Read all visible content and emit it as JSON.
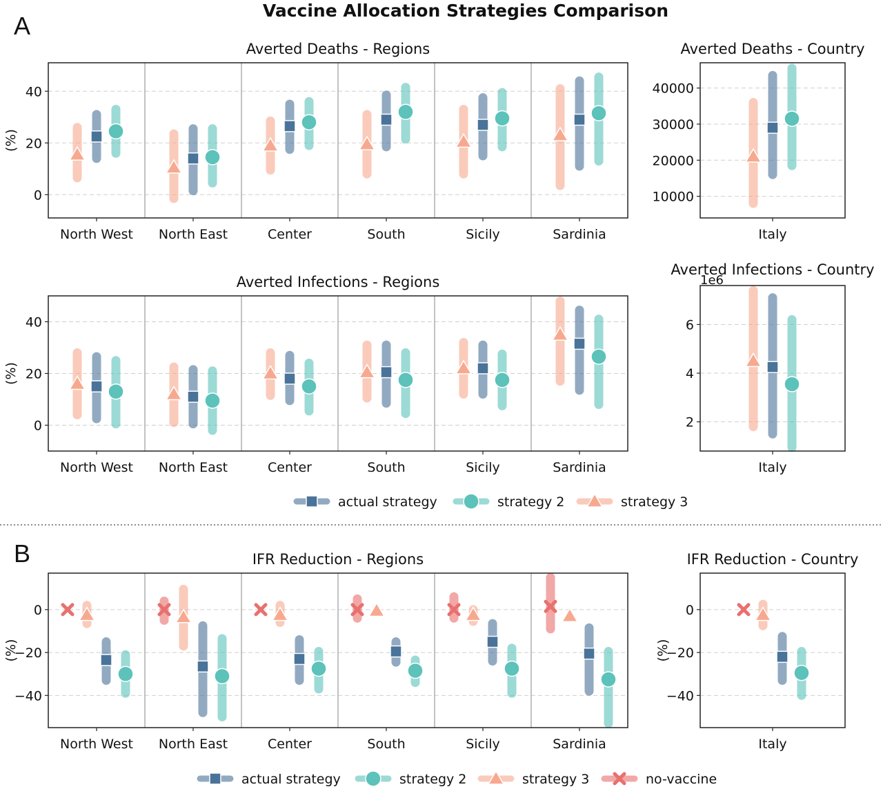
{
  "title": "Vaccine Allocation Strategies Comparison",
  "sections": [
    {
      "letter": "A"
    },
    {
      "letter": "B"
    }
  ],
  "legends": {
    "panel_a": [
      {
        "label": "actual strategy",
        "marker": "square",
        "color": "#4a7399"
      },
      {
        "label": "strategy 2",
        "marker": "circle",
        "color": "#5cc2ba"
      },
      {
        "label": "strategy 3",
        "marker": "triangle",
        "color": "#f7a98f"
      }
    ],
    "panel_b": [
      {
        "label": "actual strategy",
        "marker": "square",
        "color": "#4a7399"
      },
      {
        "label": "strategy 2",
        "marker": "circle",
        "color": "#5cc2ba"
      },
      {
        "label": "strategy 3",
        "marker": "triangle",
        "color": "#f7a98f"
      },
      {
        "label": "no-vaccine",
        "marker": "x",
        "color": "#e8706e"
      }
    ]
  },
  "chart_data": [
    {
      "id": "deaths_regions",
      "type": "scatter",
      "title": "Averted Deaths - Regions",
      "xlabel": "",
      "ylabel": "(%)",
      "ylim": [
        -9,
        51
      ],
      "yticks": [
        0,
        20,
        40
      ],
      "grid": true,
      "categories": [
        "North West",
        "North East",
        "Center",
        "South",
        "Sicily",
        "Sardinia"
      ],
      "series": [
        {
          "name": "strategy 3",
          "values": [
            15.5,
            10.5,
            19.0,
            19.5,
            20.5,
            23.0
          ],
          "low": [
            6.5,
            -1.5,
            9.5,
            8,
            8,
            3.5
          ],
          "high": [
            26,
            23.5,
            28.5,
            31,
            33,
            41
          ]
        },
        {
          "name": "actual strategy",
          "values": [
            22.5,
            14,
            26.5,
            29,
            27,
            29
          ],
          "low": [
            14,
            1.5,
            17.5,
            18.5,
            15,
            11
          ],
          "high": [
            31,
            25.5,
            35,
            38.5,
            37.5,
            44
          ]
        },
        {
          "name": "strategy 2",
          "values": [
            24.5,
            14.5,
            28,
            32,
            29.5,
            31.5
          ],
          "low": [
            16,
            4.5,
            19,
            21.5,
            18.5,
            13
          ],
          "high": [
            33,
            25.5,
            36,
            41.5,
            39.5,
            45.5
          ]
        }
      ]
    },
    {
      "id": "deaths_country",
      "type": "scatter",
      "title": "Averted Deaths - Country",
      "xlabel": "",
      "ylabel": "",
      "ylim": [
        4000,
        47000
      ],
      "yticks": [
        10000,
        20000,
        30000,
        40000
      ],
      "grid": true,
      "categories": [
        "Italy"
      ],
      "series": [
        {
          "name": "strategy 3",
          "values": [
            21000
          ],
          "low": [
            8000
          ],
          "high": [
            36000
          ]
        },
        {
          "name": "actual strategy",
          "values": [
            29000
          ],
          "low": [
            16000
          ],
          "high": [
            43500
          ]
        },
        {
          "name": "strategy 2",
          "values": [
            31500
          ],
          "low": [
            18500
          ],
          "high": [
            45500
          ]
        }
      ]
    },
    {
      "id": "infections_regions",
      "type": "scatter",
      "title": "Averted Infections - Regions",
      "xlabel": "",
      "ylabel": "(%)",
      "ylim": [
        -10,
        50
      ],
      "yticks": [
        0,
        20,
        40
      ],
      "grid": true,
      "categories": [
        "North West",
        "North East",
        "Center",
        "South",
        "Sicily",
        "Sardinia"
      ],
      "series": [
        {
          "name": "strategy 3",
          "values": [
            16,
            12,
            20,
            20.5,
            22,
            35
          ],
          "low": [
            4,
            1,
            11.5,
            10.5,
            12,
            17
          ],
          "high": [
            28,
            22.5,
            28,
            31,
            32,
            48
          ]
        },
        {
          "name": "actual strategy",
          "values": [
            15,
            11,
            18,
            20.5,
            22,
            31.5
          ],
          "low": [
            2.5,
            0.5,
            9.5,
            8.5,
            12,
            13.5
          ],
          "high": [
            26.5,
            21.5,
            27,
            31,
            31,
            44.5
          ]
        },
        {
          "name": "strategy 2",
          "values": [
            13,
            9.5,
            15,
            17.5,
            17.5,
            26.5
          ],
          "low": [
            0.5,
            -2,
            5.5,
            4.5,
            7.5,
            8
          ],
          "high": [
            25,
            21,
            24,
            28,
            27.5,
            41
          ]
        }
      ]
    },
    {
      "id": "infections_country",
      "type": "scatter",
      "title": "Averted Infections - Country",
      "xlabel": "",
      "ylabel": "",
      "scale_label": "1e6",
      "ylim": [
        0.8,
        7.6
      ],
      "yticks": [
        2,
        4,
        6
      ],
      "grid": true,
      "categories": [
        "Italy"
      ],
      "series": [
        {
          "name": "strategy 3",
          "values": [
            4.5
          ],
          "low": [
            1.8
          ],
          "high": [
            7.4
          ]
        },
        {
          "name": "actual strategy",
          "values": [
            4.25
          ],
          "low": [
            1.5
          ],
          "high": [
            7.1
          ]
        },
        {
          "name": "strategy 2",
          "values": [
            3.55
          ],
          "low": [
            0.95
          ],
          "high": [
            6.2
          ]
        }
      ]
    },
    {
      "id": "ifr_regions",
      "type": "scatter",
      "title": "IFR Reduction - Regions",
      "xlabel": "",
      "ylabel": "(%)",
      "ylim": [
        -55,
        17
      ],
      "yticks": [
        -40,
        -20,
        0
      ],
      "grid": true,
      "categories": [
        "North West",
        "North East",
        "Center",
        "South",
        "Sicily",
        "Sardinia"
      ],
      "series": [
        {
          "name": "no-vaccine",
          "values": [
            0,
            0,
            0,
            0,
            0,
            1.5
          ],
          "low": [
            0,
            -5,
            0,
            -4,
            -4,
            -9
          ],
          "high": [
            0,
            4,
            0,
            5,
            6,
            15
          ]
        },
        {
          "name": "strategy 3",
          "values": [
            -2.5,
            -3.5,
            -2.5,
            -0.5,
            -2.5,
            -3
          ],
          "low": [
            -6.5,
            -17,
            -6,
            -0.5,
            -5.5,
            -3
          ],
          "high": [
            2,
            9.5,
            2,
            -0.5,
            0,
            -3
          ]
        },
        {
          "name": "actual strategy",
          "values": [
            -23.5,
            -26.5,
            -23,
            -19.5,
            -15,
            -20.5
          ],
          "low": [
            -33,
            -48,
            -33,
            -24.5,
            -24,
            -38
          ],
          "high": [
            -15,
            -7.5,
            -14,
            -15,
            -6.5,
            -8.5
          ]
        },
        {
          "name": "strategy 2",
          "values": [
            -30,
            -31,
            -27.5,
            -28.5,
            -27.5,
            -32.5
          ],
          "low": [
            -39,
            -50,
            -37,
            -34,
            -39,
            -53
          ],
          "high": [
            -21,
            -13.5,
            -19.5,
            -23.5,
            -18,
            -19.5
          ]
        }
      ]
    },
    {
      "id": "ifr_country",
      "type": "scatter",
      "title": "IFR Reduction - Country",
      "xlabel": "",
      "ylabel": "(%)",
      "ylim": [
        -55,
        17
      ],
      "yticks": [
        -40,
        -20,
        0
      ],
      "grid": true,
      "categories": [
        "Italy"
      ],
      "series": [
        {
          "name": "no-vaccine",
          "values": [
            0
          ],
          "low": [
            0
          ],
          "high": [
            0
          ]
        },
        {
          "name": "strategy 3",
          "values": [
            -2.5
          ],
          "low": [
            -7.5
          ],
          "high": [
            2.5
          ]
        },
        {
          "name": "actual strategy",
          "values": [
            -22
          ],
          "low": [
            -33
          ],
          "high": [
            -12.5
          ]
        },
        {
          "name": "strategy 2",
          "values": [
            -29.5
          ],
          "low": [
            -40
          ],
          "high": [
            -19.5
          ]
        }
      ]
    }
  ]
}
